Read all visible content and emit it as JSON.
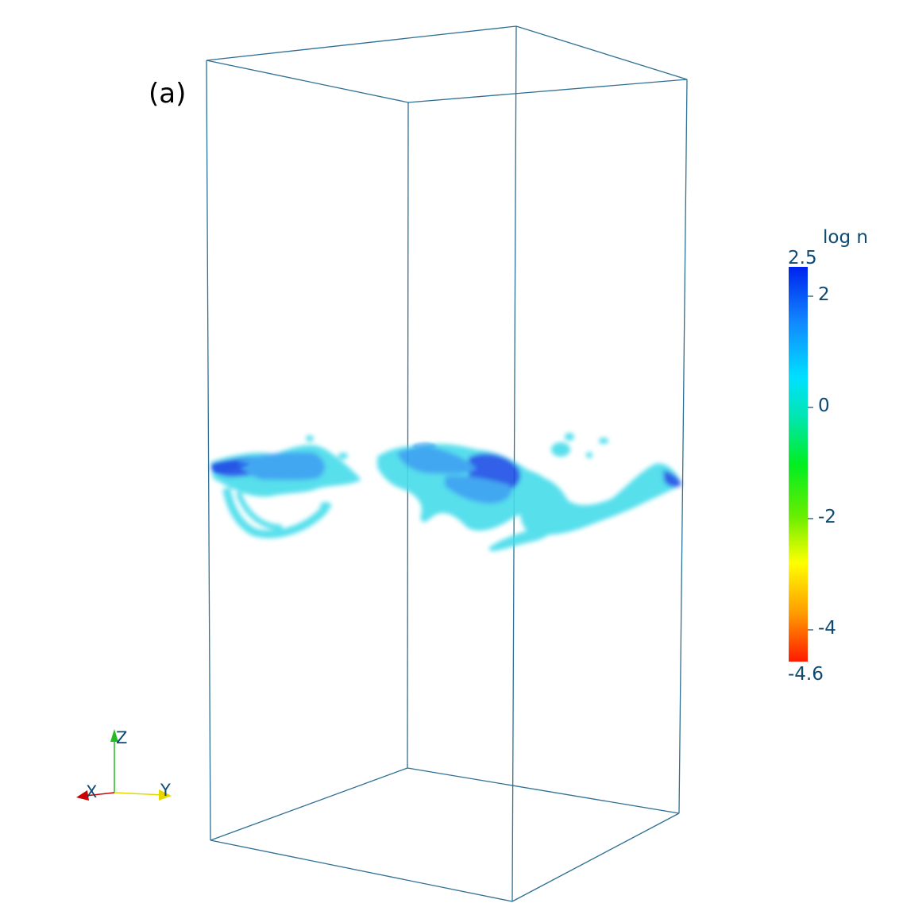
{
  "panel_label": "(a)",
  "colorbar": {
    "title": "log n",
    "max_label": "2.5",
    "min_label": "-4.6",
    "range": [
      -4.6,
      2.5
    ],
    "tick_labels": [
      "2",
      "0",
      "-2",
      "-4"
    ],
    "colormap": [
      "#ff1a00",
      "#ff9900",
      "#ffff00",
      "#66ee00",
      "#00ee22",
      "#00e6b0",
      "#00e0ff",
      "#1188ff",
      "#0022ee"
    ]
  },
  "axes_triad": {
    "x_label": "X",
    "y_label": "Y",
    "z_label": "Z",
    "x_color": "#cc0000",
    "y_color": "#e6d600",
    "z_color": "#22bb22"
  },
  "box_color": "#2e6f93",
  "cloud_colors": {
    "dense": "#1e50e6",
    "mid": "#2f9ef0",
    "light": "#44dcea"
  }
}
